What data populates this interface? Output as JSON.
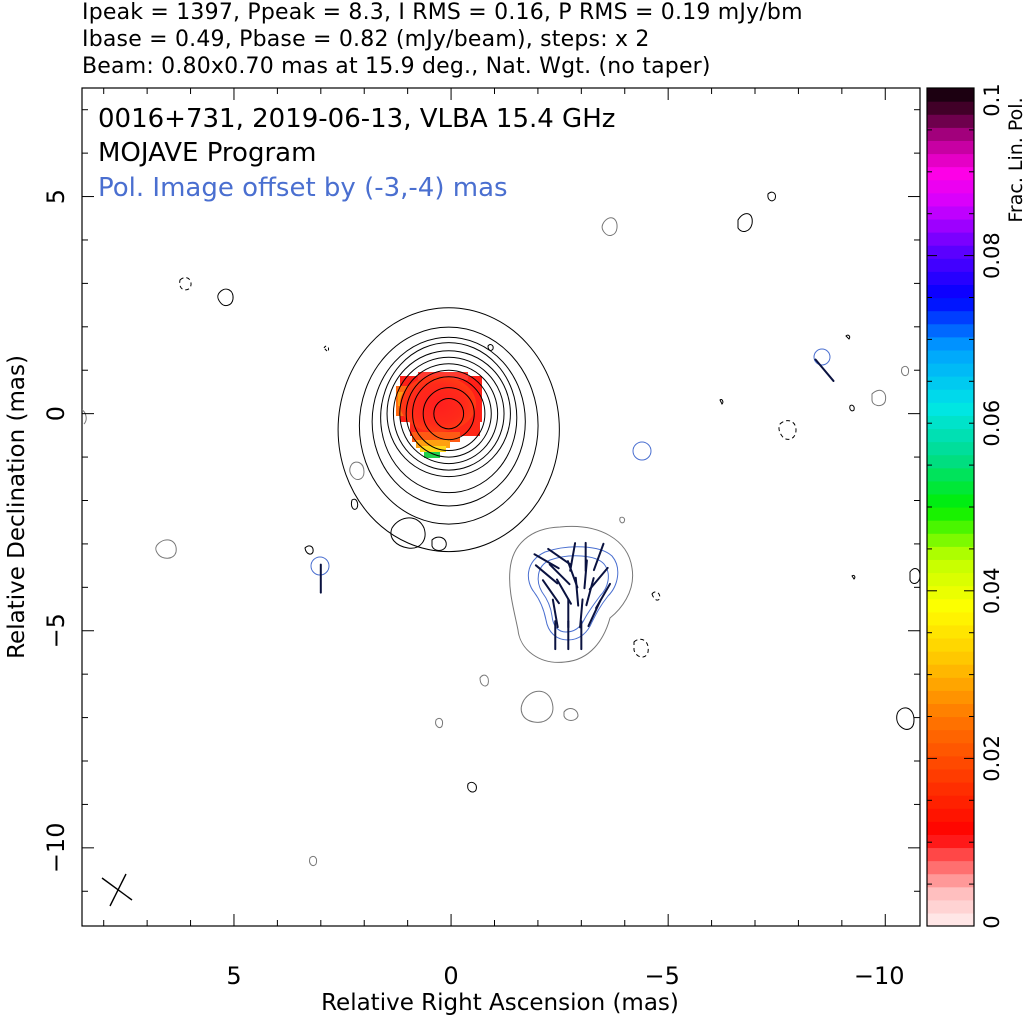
{
  "header": {
    "line1": "Ipeak = 1397, Ppeak = 8.3, I RMS = 0.16, P RMS = 0.19 mJy/bm",
    "line2": "Ibase = 0.49, Pbase = 0.82 (mJy/beam), steps: x 2",
    "line3": "Beam: 0.80x0.70 mas at 15.9 deg., Nat. Wgt. (no taper)"
  },
  "annotations": {
    "title": "0016+731, 2019-06-13, VLBA 15.4 GHz",
    "program": "MOJAVE Program",
    "pol_offset": "Pol. Image offset by (-3,-4) mas"
  },
  "colors": {
    "total_intensity_contour": "#000000",
    "faint_contour": "#707070",
    "pol_contour": "#4a6fd0",
    "pol_offset_text": "#4a6fd0",
    "evpa_vectors": "#0a1240"
  },
  "chart_data": {
    "type": "heatmap",
    "xlabel": "Relative Right Ascension (mas)",
    "ylabel": "Relative Declination (mas)",
    "xlim": [
      8.5,
      -10.8
    ],
    "ylim": [
      -11.8,
      7.5
    ],
    "xticks": [
      5,
      0,
      -5,
      -10
    ],
    "xtick_labels": [
      "5",
      "0",
      "−5",
      "−10"
    ],
    "yticks": [
      5,
      0,
      -5,
      -10
    ],
    "ytick_labels": [
      "5",
      "0",
      "−5",
      "−10"
    ],
    "colorbar": {
      "label": "Frac. Lin. Pol.",
      "range": [
        0,
        0.1
      ],
      "ticks": [
        0,
        0.02,
        0.04,
        0.06,
        0.08,
        0.1
      ],
      "tick_labels": [
        "0",
        "0.02",
        "0.04",
        "0.06",
        "0.08",
        "0.1"
      ]
    },
    "core": {
      "position": [
        0.1,
        0.0
      ],
      "contour_radii_mas": [
        0.35,
        0.6,
        0.85,
        1.0,
        1.15,
        1.3,
        1.45,
        1.6,
        1.8,
        2.1,
        2.6
      ],
      "frac_pol_patch": {
        "red_region_center": [
          0.2,
          -0.2
        ],
        "extends_to_min": [
          0.4,
          -1.1
        ],
        "frac_pol_range": [
          0.01,
          0.05
        ]
      }
    },
    "beam": {
      "major_mas": 0.8,
      "minor_mas": 0.7,
      "pa_deg": 15.9,
      "position": [
        7.6,
        -11.2
      ]
    },
    "pol_feature": {
      "center": [
        -2.8,
        -4.3
      ],
      "evpa_vectors": [
        {
          "x": -2.2,
          "y": -3.4,
          "pa": -60
        },
        {
          "x": -2.5,
          "y": -3.3,
          "pa": -55
        },
        {
          "x": -2.8,
          "y": -3.3,
          "pa": 10
        },
        {
          "x": -3.1,
          "y": -3.3,
          "pa": 0
        },
        {
          "x": -3.4,
          "y": -3.3,
          "pa": 20
        },
        {
          "x": -2.2,
          "y": -3.7,
          "pa": -50
        },
        {
          "x": -2.5,
          "y": -3.7,
          "pa": -45
        },
        {
          "x": -2.8,
          "y": -3.7,
          "pa": -20
        },
        {
          "x": -3.1,
          "y": -3.7,
          "pa": 5
        },
        {
          "x": -3.4,
          "y": -3.8,
          "pa": 40
        },
        {
          "x": -2.3,
          "y": -4.1,
          "pa": -35
        },
        {
          "x": -2.6,
          "y": -4.1,
          "pa": -30
        },
        {
          "x": -2.9,
          "y": -4.1,
          "pa": -5
        },
        {
          "x": -3.2,
          "y": -4.1,
          "pa": 15
        },
        {
          "x": -3.5,
          "y": -4.2,
          "pa": 30
        },
        {
          "x": -2.4,
          "y": -4.6,
          "pa": -10
        },
        {
          "x": -2.7,
          "y": -4.6,
          "pa": 0
        },
        {
          "x": -3.0,
          "y": -4.6,
          "pa": 5
        },
        {
          "x": -3.3,
          "y": -4.6,
          "pa": 25
        },
        {
          "x": -2.4,
          "y": -5.1,
          "pa": 0
        },
        {
          "x": -2.7,
          "y": -5.1,
          "pa": 0
        },
        {
          "x": -3.0,
          "y": -5.1,
          "pa": 0
        },
        {
          "x": -8.6,
          "y": 1.0,
          "pa": -40
        },
        {
          "x": 3.0,
          "y": -3.8,
          "pa": 0
        }
      ]
    }
  }
}
